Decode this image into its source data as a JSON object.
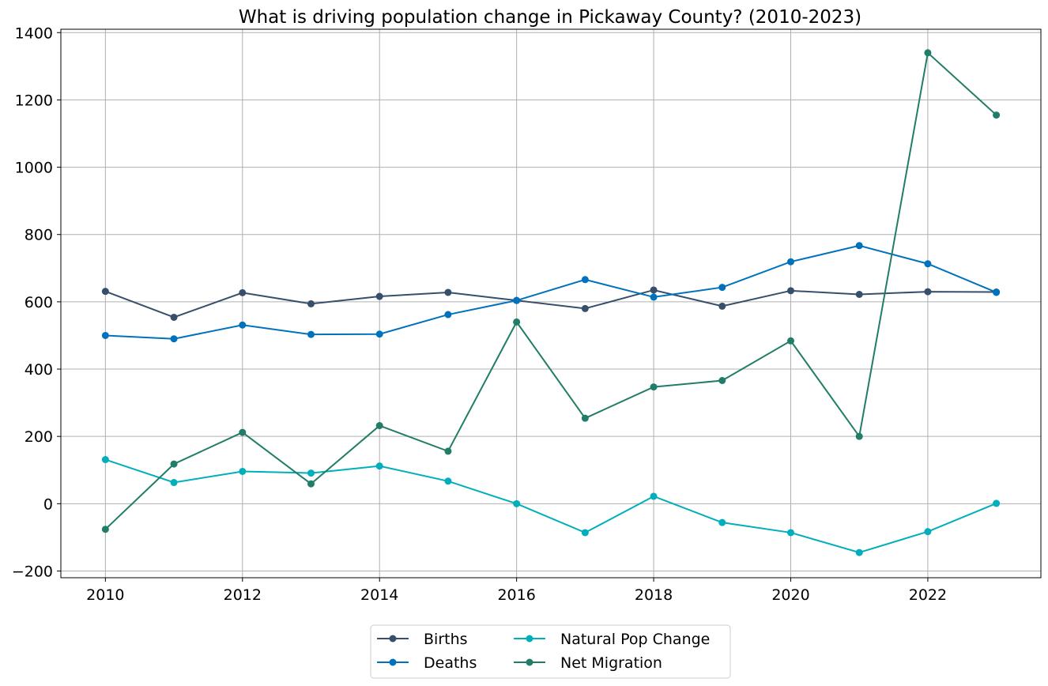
{
  "chart_data": {
    "type": "line",
    "title": "What is driving population change in Pickaway County? (2010-2023)",
    "xlabel": "",
    "ylabel": "",
    "x": [
      2010,
      2011,
      2012,
      2013,
      2014,
      2015,
      2016,
      2017,
      2018,
      2019,
      2020,
      2021,
      2022,
      2023
    ],
    "xlim": [
      2009.35,
      2023.65
    ],
    "ylim": [
      -220,
      1410
    ],
    "x_ticks": [
      2010,
      2012,
      2014,
      2016,
      2018,
      2020,
      2022
    ],
    "y_ticks": [
      -200,
      0,
      200,
      400,
      600,
      800,
      1000,
      1200,
      1400
    ],
    "x_tick_labels": [
      "2010",
      "2012",
      "2014",
      "2016",
      "2018",
      "2020",
      "2022"
    ],
    "y_tick_labels": [
      "−200",
      "0",
      "200",
      "400",
      "600",
      "800",
      "1000",
      "1200",
      "1400"
    ],
    "grid": true,
    "legend_position": "bottom-center, below plot, 2 columns",
    "series": [
      {
        "name": "Births",
        "color": "#374f6b",
        "values": [
          631,
          554,
          627,
          594,
          616,
          628,
          604,
          580,
          635,
          587,
          633,
          622,
          630,
          629
        ]
      },
      {
        "name": "Deaths",
        "color": "#0072bd",
        "values": [
          500,
          490,
          531,
          503,
          504,
          562,
          604,
          666,
          614,
          643,
          719,
          767,
          713,
          628
        ]
      },
      {
        "name": "Natural Pop Change",
        "color": "#00aebc",
        "values": [
          131,
          63,
          96,
          91,
          112,
          67,
          0,
          -86,
          22,
          -56,
          -86,
          -145,
          -83,
          1
        ]
      },
      {
        "name": "Net Migration",
        "color": "#217d68",
        "values": [
          -76,
          118,
          212,
          59,
          232,
          156,
          540,
          254,
          347,
          366,
          484,
          200,
          1340,
          1155
        ]
      }
    ]
  }
}
